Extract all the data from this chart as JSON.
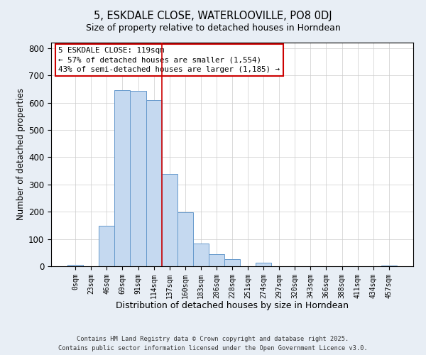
{
  "title": "5, ESKDALE CLOSE, WATERLOOVILLE, PO8 0DJ",
  "subtitle": "Size of property relative to detached houses in Horndean",
  "xlabel": "Distribution of detached houses by size in Horndean",
  "ylabel": "Number of detached properties",
  "bar_labels": [
    "0sqm",
    "23sqm",
    "46sqm",
    "69sqm",
    "91sqm",
    "114sqm",
    "137sqm",
    "160sqm",
    "183sqm",
    "206sqm",
    "228sqm",
    "251sqm",
    "274sqm",
    "297sqm",
    "320sqm",
    "343sqm",
    "366sqm",
    "388sqm",
    "411sqm",
    "434sqm",
    "457sqm"
  ],
  "bar_values": [
    5,
    0,
    148,
    645,
    643,
    610,
    338,
    199,
    83,
    43,
    27,
    0,
    12,
    0,
    0,
    0,
    0,
    0,
    0,
    0,
    2
  ],
  "bar_color": "#c5d9f0",
  "bar_edgecolor": "#6699cc",
  "vline_x": 5.5,
  "vline_color": "#cc0000",
  "ylim": [
    0,
    820
  ],
  "yticks": [
    0,
    100,
    200,
    300,
    400,
    500,
    600,
    700,
    800
  ],
  "annotation_text": "5 ESKDALE CLOSE: 119sqm\n← 57% of detached houses are smaller (1,554)\n43% of semi-detached houses are larger (1,185) →",
  "annotation_box_edgecolor": "#cc0000",
  "footer1": "Contains HM Land Registry data © Crown copyright and database right 2025.",
  "footer2": "Contains public sector information licensed under the Open Government Licence v3.0.",
  "bg_color": "#e8eef5",
  "plot_bg_color": "#ffffff",
  "title_fontsize": 10.5,
  "subtitle_fontsize": 9
}
